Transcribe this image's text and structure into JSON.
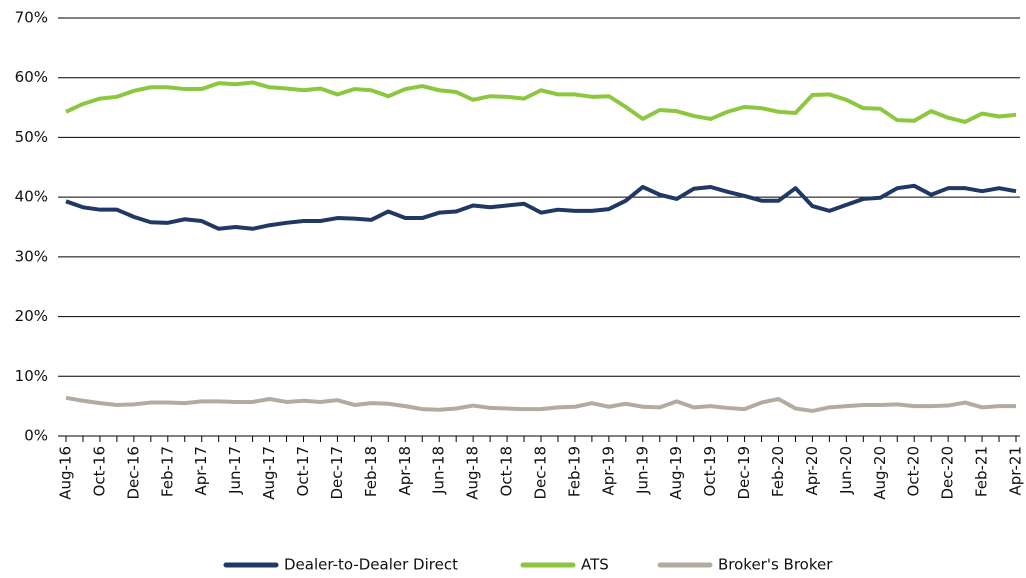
{
  "chart_data": {
    "type": "line",
    "categories": [
      "Aug-16",
      null,
      "Oct-16",
      null,
      "Dec-16",
      null,
      "Feb-17",
      null,
      "Apr-17",
      null,
      "Jun-17",
      null,
      "Aug-17",
      null,
      "Oct-17",
      null,
      "Dec-17",
      null,
      "Feb-18",
      null,
      "Apr-18",
      null,
      "Jun-18",
      null,
      "Aug-18",
      null,
      "Oct-18",
      null,
      "Dec-18",
      null,
      "Feb-19",
      null,
      "Apr-19",
      null,
      "Jun-19",
      null,
      "Aug-19",
      null,
      "Oct-19",
      null,
      "Dec-19",
      null,
      "Feb-20",
      null,
      "Apr-20",
      null,
      "Jun-20",
      null,
      "Aug-20",
      null,
      "Oct-20",
      null,
      "Dec-20",
      null,
      "Feb-21",
      null,
      "Apr-21"
    ],
    "series": [
      {
        "name": "Dealer-to-Dealer Direct",
        "color": "#1f3864",
        "values": [
          39.3,
          38.3,
          37.9,
          37.9,
          36.7,
          35.8,
          35.7,
          36.3,
          36.0,
          34.7,
          35.0,
          34.7,
          35.3,
          35.7,
          36.0,
          36.0,
          36.5,
          36.4,
          36.2,
          37.6,
          36.5,
          36.5,
          37.4,
          37.6,
          38.6,
          38.3,
          38.6,
          38.9,
          37.4,
          37.9,
          37.7,
          37.7,
          38.0,
          39.4,
          41.7,
          40.4,
          39.7,
          41.4,
          41.7,
          40.9,
          40.2,
          39.4,
          39.4,
          41.5,
          38.5,
          37.7,
          38.7,
          39.7,
          39.9,
          41.5,
          41.9,
          40.4,
          41.5,
          41.5,
          41.0,
          41.5,
          41.0
        ]
      },
      {
        "name": "ATS",
        "color": "#8dc63f",
        "values": [
          54.3,
          55.6,
          56.5,
          56.8,
          57.8,
          58.4,
          58.4,
          58.1,
          58.1,
          59.1,
          58.9,
          59.2,
          58.4,
          58.2,
          57.9,
          58.2,
          57.2,
          58.1,
          57.9,
          56.9,
          58.1,
          58.6,
          57.9,
          57.6,
          56.3,
          56.9,
          56.8,
          56.5,
          57.9,
          57.2,
          57.2,
          56.8,
          56.9,
          55.1,
          53.1,
          54.6,
          54.4,
          53.6,
          53.1,
          54.3,
          55.1,
          54.9,
          54.3,
          54.1,
          57.1,
          57.2,
          56.3,
          54.9,
          54.8,
          52.9,
          52.8,
          54.4,
          53.3,
          52.6,
          54.0,
          53.5,
          53.8
        ]
      },
      {
        "name": "Broker's Broker",
        "color": "#b3aba0",
        "values": [
          6.4,
          5.9,
          5.5,
          5.2,
          5.3,
          5.6,
          5.6,
          5.5,
          5.8,
          5.8,
          5.7,
          5.7,
          6.2,
          5.7,
          5.9,
          5.7,
          6.0,
          5.2,
          5.5,
          5.4,
          5.0,
          4.5,
          4.4,
          4.6,
          5.1,
          4.7,
          4.6,
          4.5,
          4.5,
          4.8,
          4.9,
          5.5,
          4.9,
          5.4,
          4.9,
          4.8,
          5.8,
          4.8,
          5.0,
          4.7,
          4.5,
          5.6,
          6.2,
          4.6,
          4.2,
          4.8,
          5.0,
          5.2,
          5.2,
          5.3,
          5.0,
          5.0,
          5.1,
          5.6,
          4.8,
          5.0,
          5.0
        ]
      }
    ],
    "ylim": [
      0,
      70
    ],
    "yticks": [
      {
        "value": 0,
        "label": "0%"
      },
      {
        "value": 10,
        "label": "10%"
      },
      {
        "value": 20,
        "label": "20%"
      },
      {
        "value": 30,
        "label": "30%"
      },
      {
        "value": 40,
        "label": "40%"
      },
      {
        "value": 50,
        "label": "50%"
      },
      {
        "value": 60,
        "label": "60%"
      },
      {
        "value": 70,
        "label": "70%"
      }
    ],
    "grid": true,
    "legend": "bottom"
  }
}
